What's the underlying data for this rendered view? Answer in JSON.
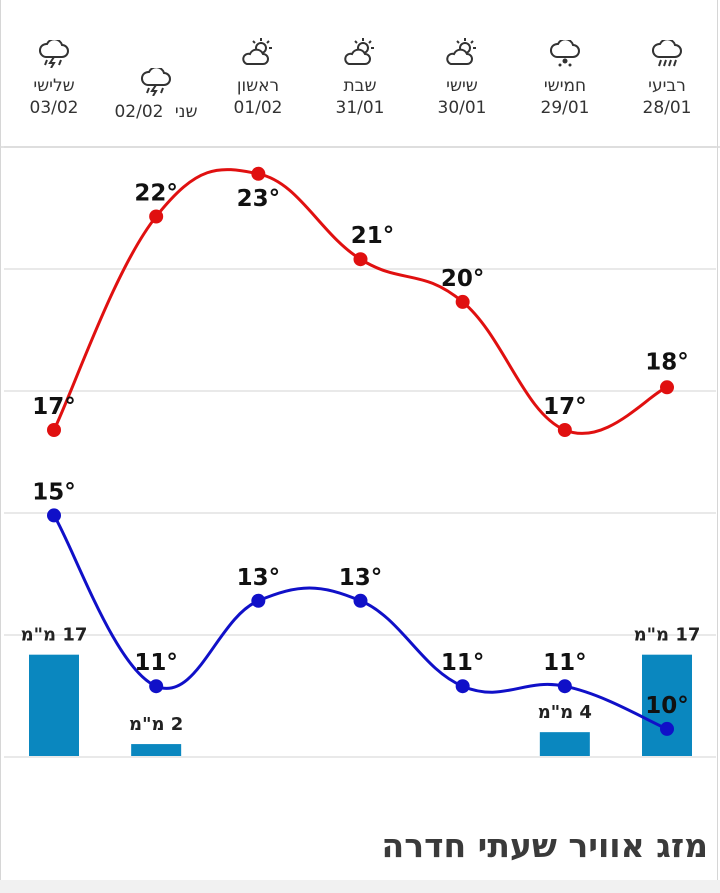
{
  "days": [
    {
      "name": "רביעי",
      "date": "28/01",
      "icon": "rain-icon"
    },
    {
      "name": "חמישי",
      "date": "29/01",
      "icon": "drizzle-icon"
    },
    {
      "name": "שישי",
      "date": "30/01",
      "icon": "partly-cloudy-icon"
    },
    {
      "name": "שבת",
      "date": "31/01",
      "icon": "partly-cloudy-icon"
    },
    {
      "name": "ראשון",
      "date": "01/02",
      "icon": "partly-cloudy-icon"
    },
    {
      "name": "שני",
      "date": "02/02",
      "icon": "thunderstorm-icon"
    },
    {
      "name": "שלישי",
      "date": "03/02",
      "icon": "thunderstorm-icon"
    }
  ],
  "chart_data": {
    "type": "line",
    "categories": [
      "28/01",
      "29/01",
      "30/01",
      "31/01",
      "01/02",
      "02/02",
      "03/02"
    ],
    "series": [
      {
        "values": [
          18,
          17,
          20,
          21,
          23,
          22,
          17
        ],
        "labels": [
          "18°",
          "17°",
          "20°",
          "21°",
          "23°",
          "22°",
          "17°"
        ],
        "color": "#e01010"
      },
      {
        "values": [
          10,
          11,
          11,
          13,
          13,
          11,
          15
        ],
        "labels": [
          "10°",
          "11°",
          "11°",
          "13°",
          "13°",
          "11°",
          "15°"
        ],
        "color": "#1010c8"
      }
    ],
    "precipitation": {
      "values": [
        17,
        4,
        0,
        0,
        0,
        2,
        17
      ],
      "labels": [
        "17 מ\"מ",
        "4 מ\"מ",
        "",
        "",
        "",
        "2 מ\"מ",
        "17 מ\"מ"
      ],
      "color": "#0a87bf"
    }
  },
  "footer": {
    "title": "מזג אוויר שעתי חדרה"
  }
}
